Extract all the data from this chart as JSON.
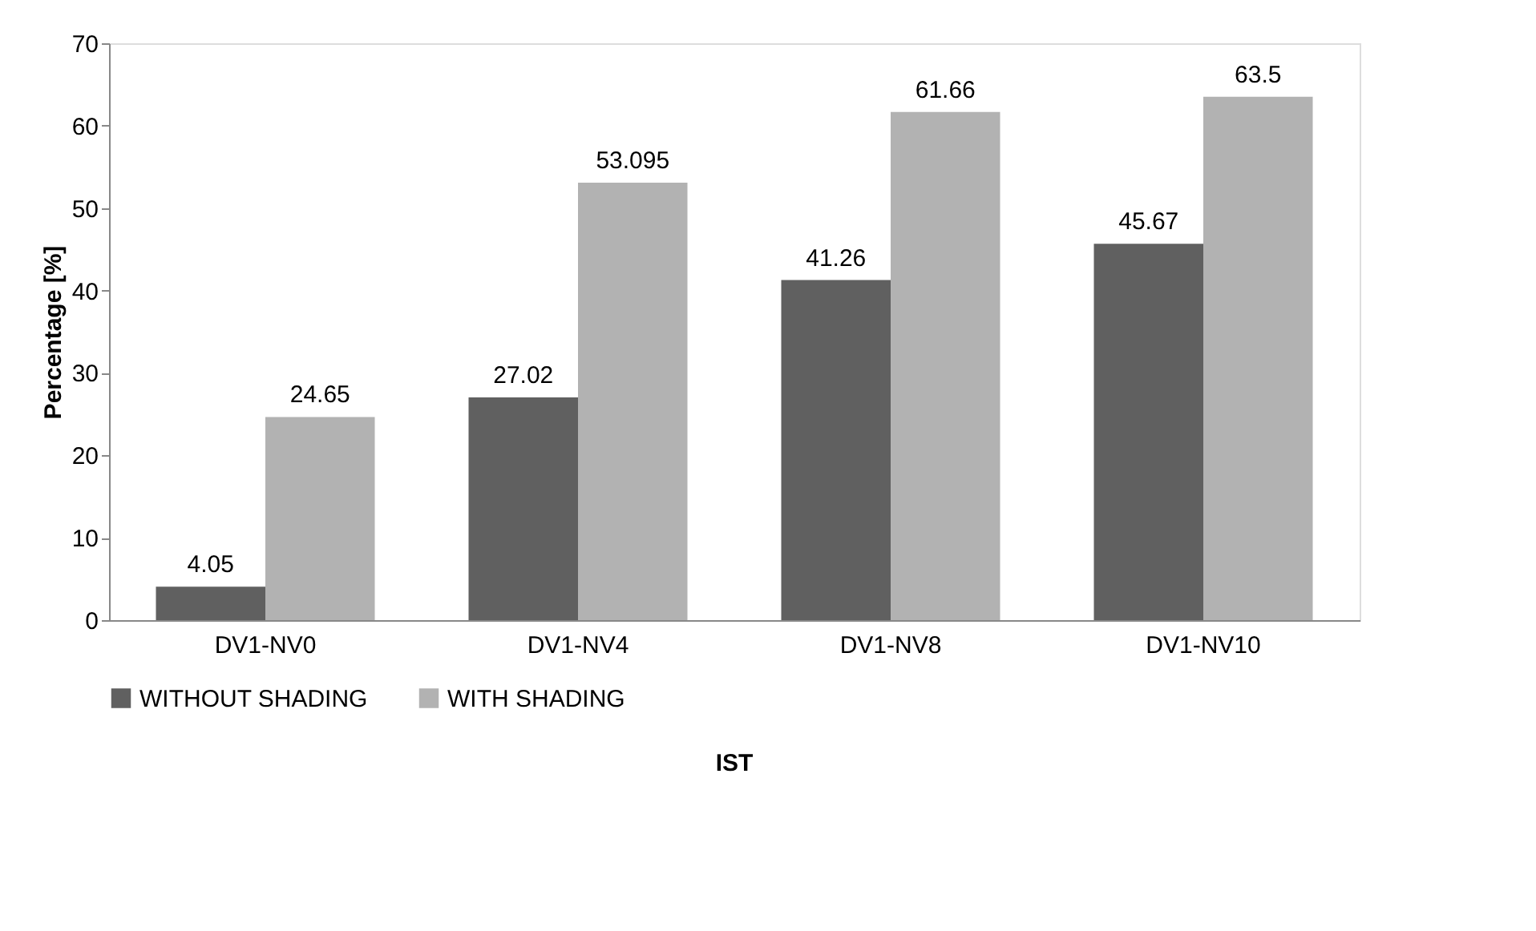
{
  "chart_data": {
    "type": "bar",
    "xlabel": "IST",
    "ylabel": "Percentage [%]",
    "categories": [
      "DV1-NV0",
      "DV1-NV4",
      "DV1-NV8",
      "DV1-NV10"
    ],
    "series": [
      {
        "name": "WITHOUT SHADING",
        "color": "#606060",
        "values": [
          4.05,
          27.02,
          41.26,
          45.67
        ]
      },
      {
        "name": "WITH SHADING",
        "color": "#b2b2b2",
        "values": [
          24.65,
          53.095,
          61.66,
          63.5
        ]
      }
    ],
    "ylim": [
      0,
      70
    ],
    "yticks": [
      0,
      10,
      20,
      30,
      40,
      50,
      60,
      70
    ],
    "grid": false,
    "legend": "bottom",
    "data_labels": true
  }
}
